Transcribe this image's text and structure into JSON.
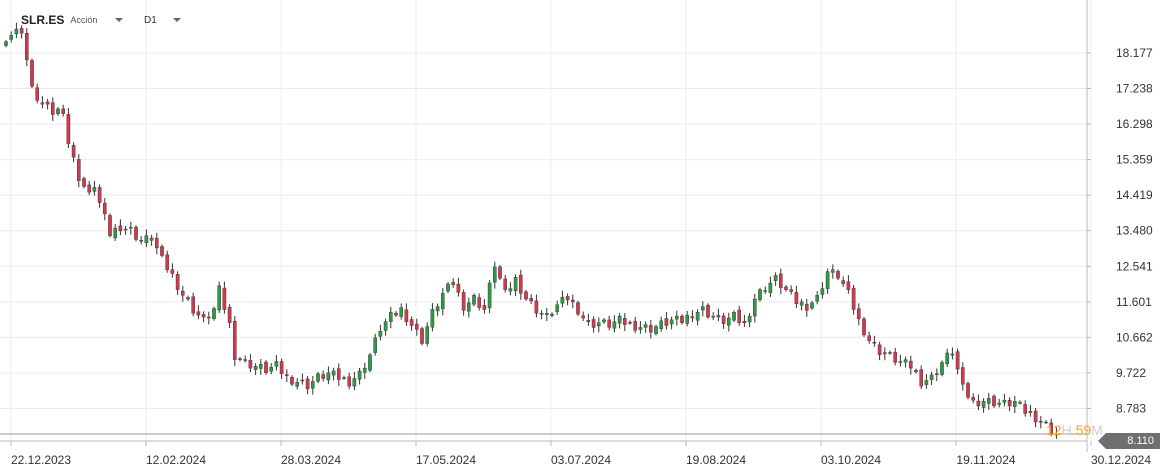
{
  "header": {
    "symbol": "SLR.ES",
    "instrument_type": "Acción",
    "timeframe": "D1"
  },
  "countdown": {
    "hours": "12",
    "hours_unit": "H",
    "minutes": "59",
    "minutes_unit": "M"
  },
  "last_price": "8.110",
  "colors": {
    "up": "#2e9a45",
    "down": "#d2394f",
    "grid": "#ececec",
    "axis": "#b8b8b8",
    "tag": "#6f6f6f",
    "countdown": "#f0a030"
  },
  "chart_data": {
    "type": "candlestick",
    "y_ticks": [
      "18.177",
      "17.238",
      "16.298",
      "15.359",
      "14.419",
      "13.480",
      "12.541",
      "11.601",
      "10.662",
      "9.722",
      "8.783"
    ],
    "x_ticks": [
      "22.12.2023",
      "12.02.2024",
      "28.03.2024",
      "17.05.2024",
      "03.07.2024",
      "19.08.2024",
      "03.10.2024",
      "19.11.2024",
      "30.12.2024"
    ],
    "ylim": [
      7.95,
      19.3
    ],
    "grid": true,
    "last_price": 8.11,
    "close_path": [
      [
        0,
        18.6
      ],
      [
        3,
        18.8
      ],
      [
        5,
        17.2
      ],
      [
        7,
        16.8
      ],
      [
        9,
        16.6
      ],
      [
        11,
        16.7
      ],
      [
        12,
        15.8
      ],
      [
        14,
        14.9
      ],
      [
        16,
        14.4
      ],
      [
        17,
        14.7
      ],
      [
        18,
        14.2
      ],
      [
        20,
        13.4
      ],
      [
        22,
        13.6
      ],
      [
        24,
        13.5
      ],
      [
        26,
        13.2
      ],
      [
        28,
        13.3
      ],
      [
        30,
        12.7
      ],
      [
        32,
        12.3
      ],
      [
        34,
        11.8
      ],
      [
        36,
        11.4
      ],
      [
        38,
        11.1
      ],
      [
        40,
        11.4
      ],
      [
        41,
        11.9
      ],
      [
        43,
        11.0
      ],
      [
        44,
        10.2
      ],
      [
        46,
        10.0
      ],
      [
        48,
        9.9
      ],
      [
        50,
        9.8
      ],
      [
        52,
        9.9
      ],
      [
        54,
        9.6
      ],
      [
        56,
        9.5
      ],
      [
        58,
        9.4
      ],
      [
        60,
        9.6
      ],
      [
        62,
        9.7
      ],
      [
        64,
        9.6
      ],
      [
        66,
        9.5
      ],
      [
        68,
        9.7
      ],
      [
        70,
        10.2
      ],
      [
        72,
        10.9
      ],
      [
        74,
        11.2
      ],
      [
        76,
        11.4
      ],
      [
        78,
        11.0
      ],
      [
        80,
        10.6
      ],
      [
        82,
        11.3
      ],
      [
        84,
        11.8
      ],
      [
        86,
        12.1
      ],
      [
        88,
        11.5
      ],
      [
        90,
        11.7
      ],
      [
        92,
        11.4
      ],
      [
        94,
        12.6
      ],
      [
        96,
        11.8
      ],
      [
        98,
        12.2
      ],
      [
        100,
        11.7
      ],
      [
        102,
        11.4
      ],
      [
        104,
        11.2
      ],
      [
        106,
        11.5
      ],
      [
        108,
        11.7
      ],
      [
        110,
        11.4
      ],
      [
        112,
        11.0
      ],
      [
        114,
        11.05
      ],
      [
        116,
        11.0
      ],
      [
        118,
        11.1
      ],
      [
        120,
        11.0
      ],
      [
        122,
        10.95
      ],
      [
        124,
        10.9
      ],
      [
        126,
        11.0
      ],
      [
        128,
        11.1
      ],
      [
        130,
        11.1
      ],
      [
        132,
        11.3
      ],
      [
        134,
        11.4
      ],
      [
        136,
        11.2
      ],
      [
        138,
        11.1
      ],
      [
        140,
        11.2
      ],
      [
        142,
        11.0
      ],
      [
        144,
        11.7
      ],
      [
        146,
        12.0
      ],
      [
        148,
        12.2
      ],
      [
        150,
        11.9
      ],
      [
        152,
        11.6
      ],
      [
        154,
        11.5
      ],
      [
        156,
        11.7
      ],
      [
        158,
        12.4
      ],
      [
        160,
        12.3
      ],
      [
        162,
        11.8
      ],
      [
        164,
        11.1
      ],
      [
        166,
        10.6
      ],
      [
        168,
        10.3
      ],
      [
        170,
        10.15
      ],
      [
        172,
        10.0
      ],
      [
        174,
        9.9
      ],
      [
        176,
        9.5
      ],
      [
        178,
        9.6
      ],
      [
        180,
        10.0
      ],
      [
        182,
        10.3
      ],
      [
        184,
        9.3
      ],
      [
        186,
        8.95
      ],
      [
        188,
        9.0
      ],
      [
        190,
        8.95
      ],
      [
        192,
        8.9
      ],
      [
        194,
        8.95
      ],
      [
        196,
        8.7
      ],
      [
        198,
        8.55
      ],
      [
        200,
        8.35
      ],
      [
        202,
        8.11
      ]
    ]
  }
}
